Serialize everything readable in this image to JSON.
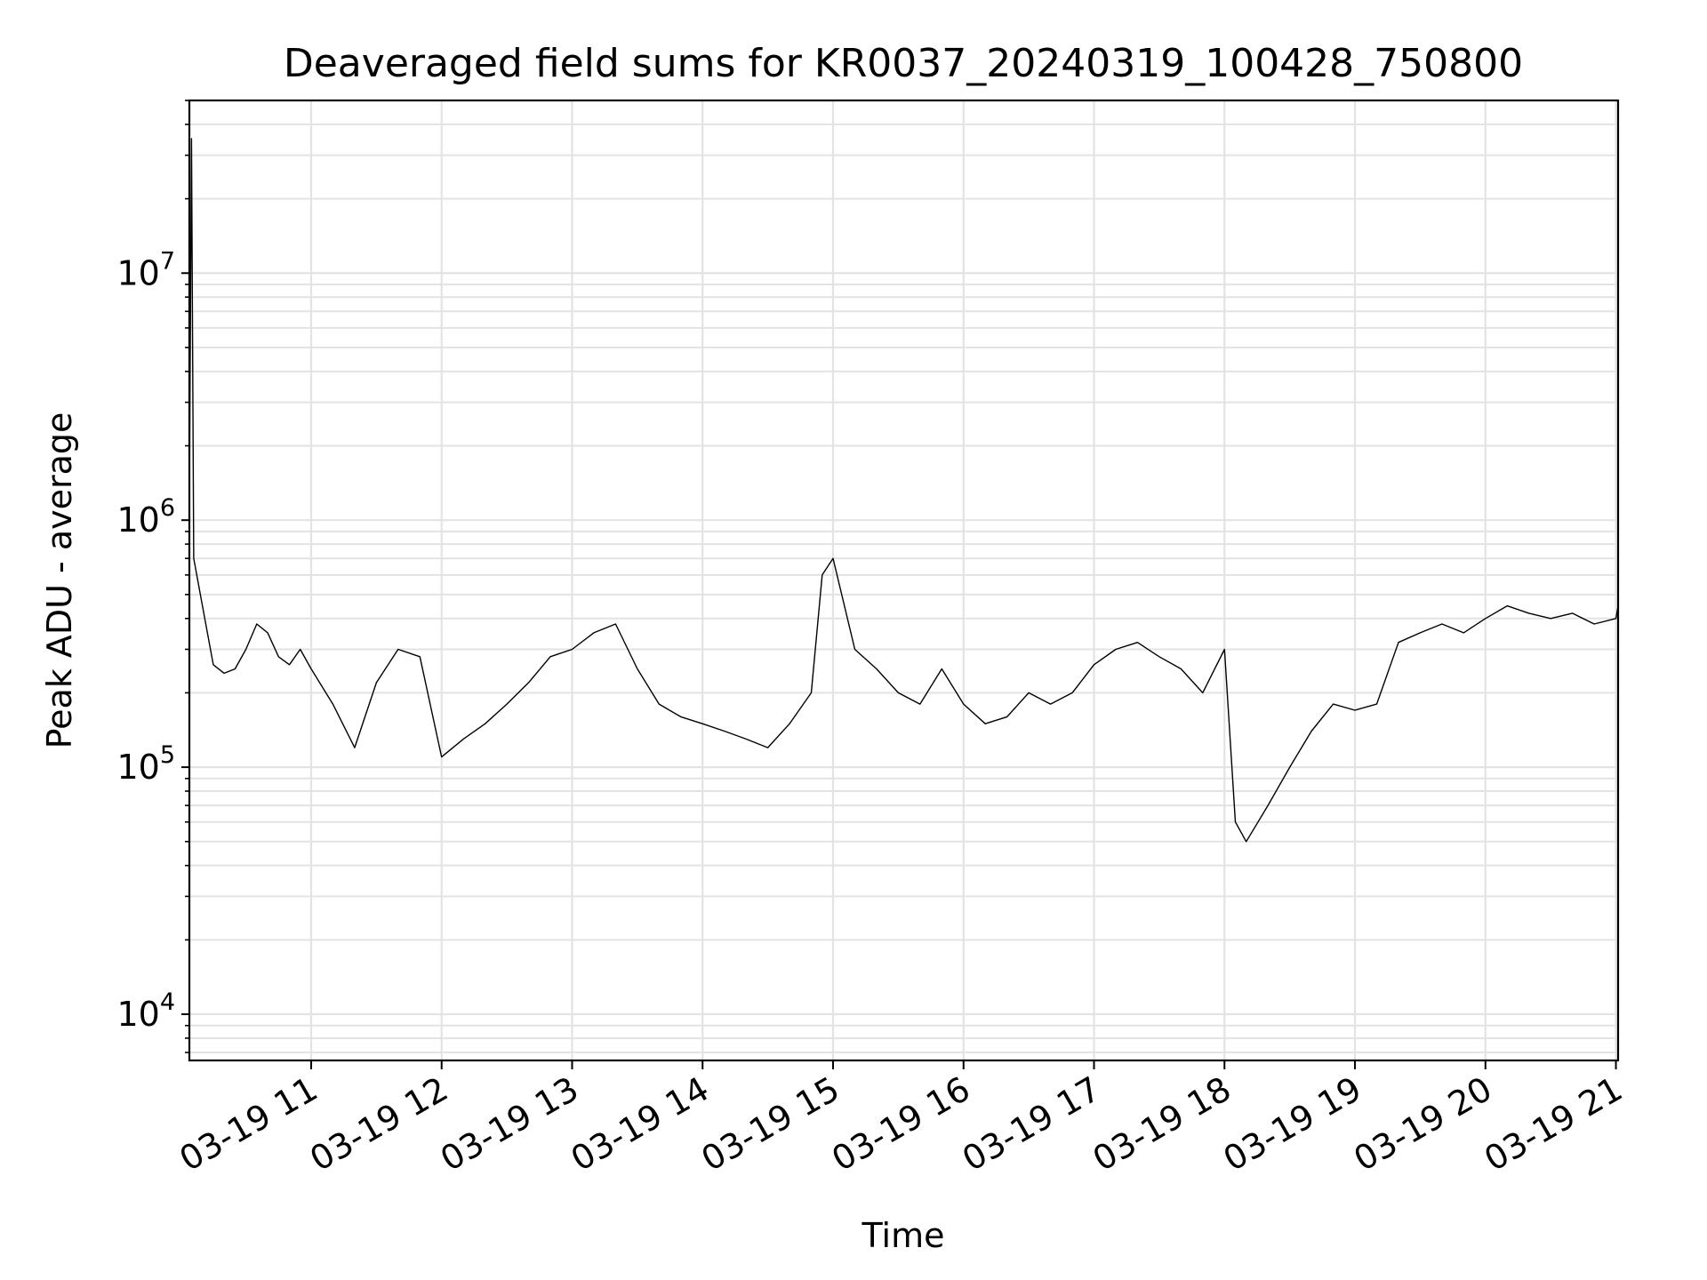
{
  "chart_data": {
    "type": "line",
    "title": "Deaveraged field sums for KR0037_20240319_100428_750800",
    "xlabel": "Time",
    "ylabel": "Peak ADU - average",
    "yscale": "log",
    "ylim": [
      6500,
      50000000
    ],
    "xlim": [
      "2024-03-19 10:04",
      "2024-03-19 21:01"
    ],
    "grid": true,
    "line_color": "#000000",
    "grid_color": "#e3e3e3",
    "x_ticks": [
      {
        "time": "2024-03-19 11:00",
        "label": "03-19 11"
      },
      {
        "time": "2024-03-19 12:00",
        "label": "03-19 12"
      },
      {
        "time": "2024-03-19 13:00",
        "label": "03-19 13"
      },
      {
        "time": "2024-03-19 14:00",
        "label": "03-19 14"
      },
      {
        "time": "2024-03-19 15:00",
        "label": "03-19 15"
      },
      {
        "time": "2024-03-19 16:00",
        "label": "03-19 16"
      },
      {
        "time": "2024-03-19 17:00",
        "label": "03-19 17"
      },
      {
        "time": "2024-03-19 18:00",
        "label": "03-19 18"
      },
      {
        "time": "2024-03-19 19:00",
        "label": "03-19 19"
      },
      {
        "time": "2024-03-19 20:00",
        "label": "03-19 20"
      },
      {
        "time": "2024-03-19 21:00",
        "label": "03-19 21"
      }
    ],
    "y_ticks": [
      {
        "value": 10000,
        "base": "10",
        "exp": "4"
      },
      {
        "value": 100000,
        "base": "10",
        "exp": "5"
      },
      {
        "value": 1000000,
        "base": "10",
        "exp": "6"
      },
      {
        "value": 10000000,
        "base": "10",
        "exp": "7"
      }
    ],
    "series": [
      {
        "x": [
          "2024-03-19 10:04",
          "2024-03-19 10:05",
          "2024-03-19 10:06",
          "2024-03-19 10:10",
          "2024-03-19 10:15",
          "2024-03-19 10:20",
          "2024-03-19 10:25",
          "2024-03-19 10:30",
          "2024-03-19 10:35",
          "2024-03-19 10:40",
          "2024-03-19 10:45",
          "2024-03-19 10:50",
          "2024-03-19 10:55",
          "2024-03-19 11:00",
          "2024-03-19 11:10",
          "2024-03-19 11:20",
          "2024-03-19 11:30",
          "2024-03-19 11:40",
          "2024-03-19 11:50",
          "2024-03-19 12:00",
          "2024-03-19 12:10",
          "2024-03-19 12:20",
          "2024-03-19 12:30",
          "2024-03-19 12:40",
          "2024-03-19 12:50",
          "2024-03-19 13:00",
          "2024-03-19 13:10",
          "2024-03-19 13:20",
          "2024-03-19 13:30",
          "2024-03-19 13:40",
          "2024-03-19 13:50",
          "2024-03-19 14:00",
          "2024-03-19 14:10",
          "2024-03-19 14:20",
          "2024-03-19 14:30",
          "2024-03-19 14:40",
          "2024-03-19 14:50",
          "2024-03-19 14:55",
          "2024-03-19 15:00",
          "2024-03-19 15:10",
          "2024-03-19 15:20",
          "2024-03-19 15:30",
          "2024-03-19 15:40",
          "2024-03-19 15:50",
          "2024-03-19 16:00",
          "2024-03-19 16:10",
          "2024-03-19 16:20",
          "2024-03-19 16:30",
          "2024-03-19 16:40",
          "2024-03-19 16:50",
          "2024-03-19 17:00",
          "2024-03-19 17:10",
          "2024-03-19 17:20",
          "2024-03-19 17:30",
          "2024-03-19 17:40",
          "2024-03-19 17:50",
          "2024-03-19 18:00",
          "2024-03-19 18:05",
          "2024-03-19 18:10",
          "2024-03-19 18:20",
          "2024-03-19 18:30",
          "2024-03-19 18:40",
          "2024-03-19 18:50",
          "2024-03-19 19:00",
          "2024-03-19 19:10",
          "2024-03-19 19:20",
          "2024-03-19 19:30",
          "2024-03-19 19:40",
          "2024-03-19 19:50",
          "2024-03-19 20:00",
          "2024-03-19 20:10",
          "2024-03-19 20:20",
          "2024-03-19 20:30",
          "2024-03-19 20:40",
          "2024-03-19 20:50",
          "2024-03-19 21:00",
          "2024-03-19 21:01"
        ],
        "y": [
          1200000,
          35000000,
          700000,
          450000,
          260000,
          240000,
          250000,
          300000,
          380000,
          350000,
          280000,
          260000,
          300000,
          250000,
          180000,
          120000,
          220000,
          300000,
          280000,
          110000,
          130000,
          150000,
          180000,
          220000,
          280000,
          300000,
          350000,
          380000,
          250000,
          180000,
          160000,
          150000,
          140000,
          130000,
          120000,
          150000,
          200000,
          600000,
          700000,
          300000,
          250000,
          200000,
          180000,
          250000,
          180000,
          150000,
          160000,
          200000,
          180000,
          200000,
          260000,
          300000,
          320000,
          280000,
          250000,
          200000,
          300000,
          60000,
          50000,
          70000,
          100000,
          140000,
          180000,
          170000,
          180000,
          320000,
          350000,
          380000,
          350000,
          400000,
          450000,
          420000,
          400000,
          420000,
          380000,
          400000,
          450000
        ]
      }
    ]
  }
}
